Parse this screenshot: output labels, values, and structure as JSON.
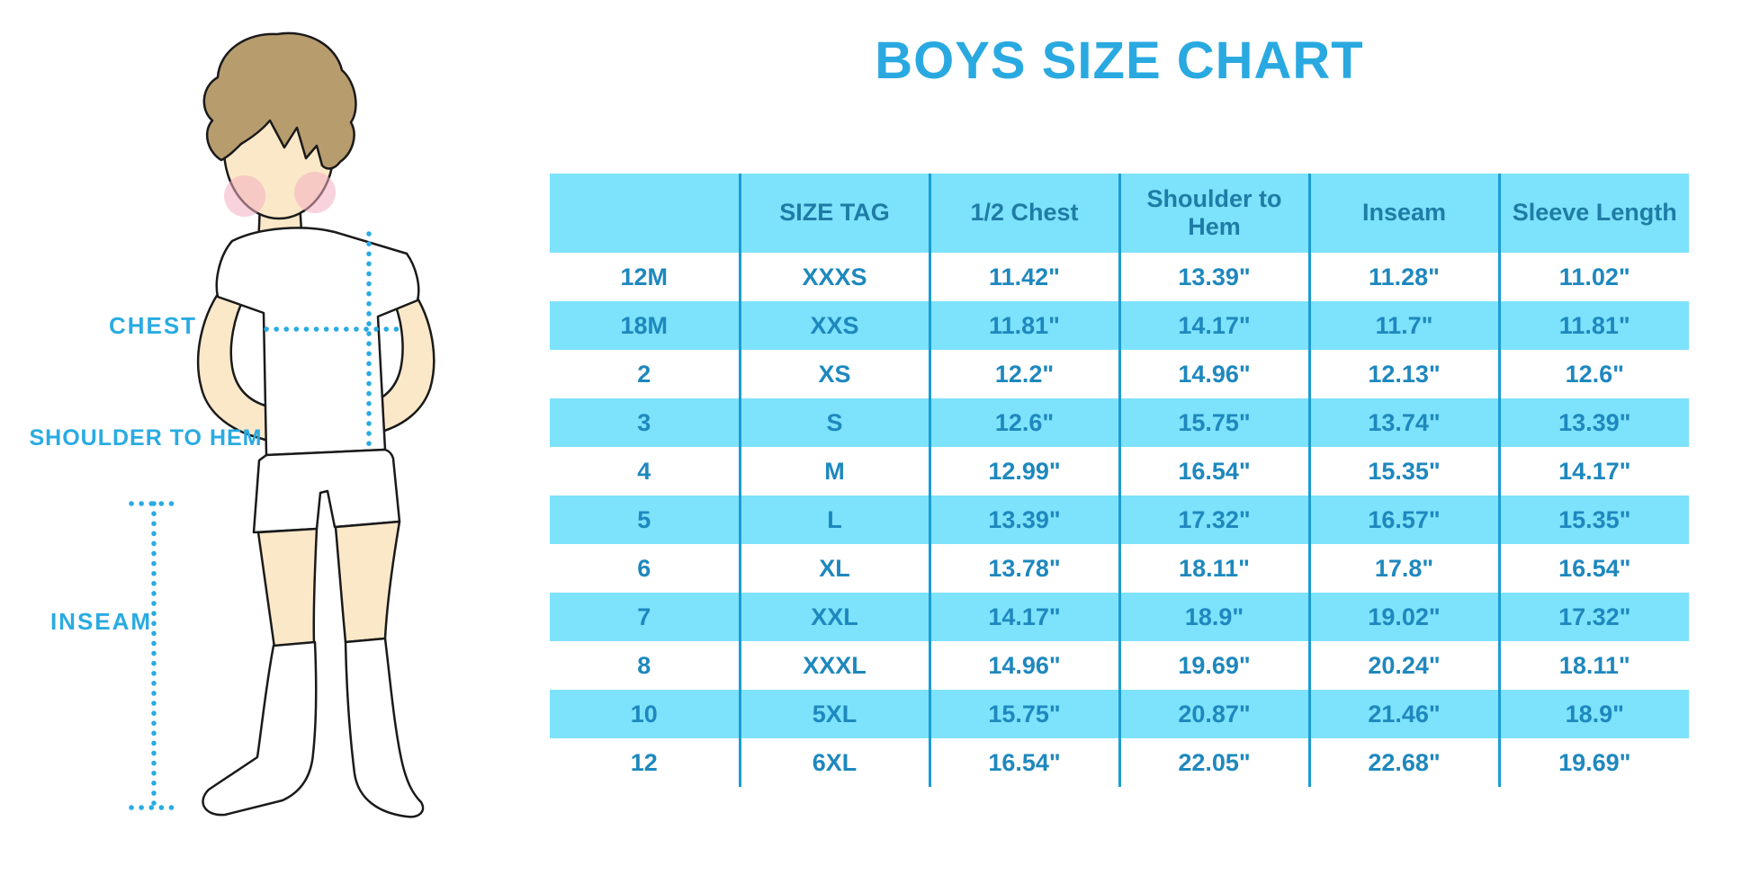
{
  "title": "BOYS SIZE CHART",
  "figure": {
    "labels": {
      "chest": "CHEST",
      "shoulder_to_hem": "SHOULDER TO HEM",
      "inseam": "INSEAM"
    }
  },
  "chart_data": {
    "type": "table",
    "title": "BOYS SIZE CHART",
    "columns": [
      "",
      "SIZE TAG",
      "1/2 Chest",
      "Shoulder to Hem",
      "Inseam",
      "Sleeve Length"
    ],
    "rows": [
      [
        "12M",
        "XXXS",
        "11.42\"",
        "13.39\"",
        "11.28\"",
        "11.02\""
      ],
      [
        "18M",
        "XXS",
        "11.81\"",
        "14.17\"",
        "11.7\"",
        "11.81\""
      ],
      [
        "2",
        "XS",
        "12.2\"",
        "14.96\"",
        "12.13\"",
        "12.6\""
      ],
      [
        "3",
        "S",
        "12.6\"",
        "15.75\"",
        "13.74\"",
        "13.39\""
      ],
      [
        "4",
        "M",
        "12.99\"",
        "16.54\"",
        "15.35\"",
        "14.17\""
      ],
      [
        "5",
        "L",
        "13.39\"",
        "17.32\"",
        "16.57\"",
        "15.35\""
      ],
      [
        "6",
        "XL",
        "13.78\"",
        "18.11\"",
        "17.8\"",
        "16.54\""
      ],
      [
        "7",
        "XXL",
        "14.17\"",
        "18.9\"",
        "19.02\"",
        "17.32\""
      ],
      [
        "8",
        "XXXL",
        "14.96\"",
        "19.69\"",
        "20.24\"",
        "18.11\""
      ],
      [
        "10",
        "5XL",
        "15.75\"",
        "20.87\"",
        "21.46\"",
        "18.9\""
      ],
      [
        "12",
        "6XL",
        "16.54\"",
        "22.05\"",
        "22.68\"",
        "19.69\""
      ]
    ]
  },
  "colors": {
    "title_blue": "#29A9E0",
    "label_blue": "#29ABE2",
    "table_fill_blue": "#7DE2FB",
    "table_divider_blue": "#1C9CD3",
    "header_text_blue": "#1F7CA6",
    "cell_text_blue": "#1E88BE",
    "dotted_line_blue": "#29ABE2",
    "skin": "#FBE8C8",
    "hair_brown": "#B79C6E",
    "blush_pink": "#F2AFC2",
    "outline": "#1A1A1A"
  }
}
